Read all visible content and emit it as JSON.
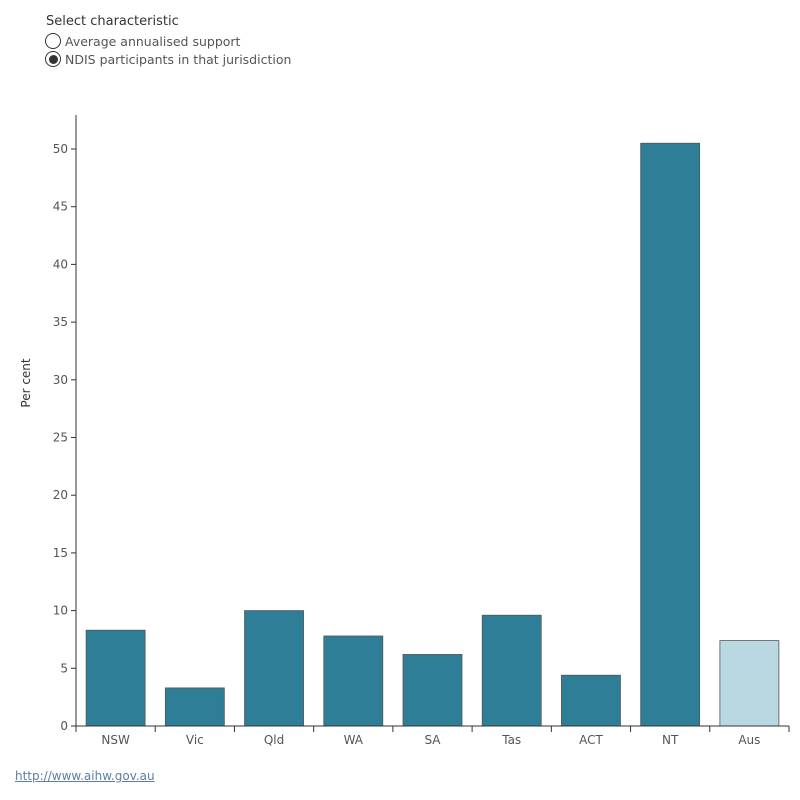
{
  "selector": {
    "title": "Select characteristic",
    "options": [
      {
        "label": "Average annualised support",
        "checked": false
      },
      {
        "label": "NDIS participants in that jurisdiction",
        "checked": true
      }
    ]
  },
  "chart_data": {
    "type": "bar",
    "categories": [
      "NSW",
      "Vic",
      "Qld",
      "WA",
      "SA",
      "Tas",
      "ACT",
      "NT",
      "Aus"
    ],
    "values": [
      8.3,
      3.3,
      10.0,
      7.8,
      6.2,
      9.6,
      4.4,
      50.5,
      7.4
    ],
    "highlight_category": "Aus",
    "title": "",
    "xlabel": "",
    "ylabel": "Per cent",
    "ylim": [
      0,
      53
    ],
    "yticks": [
      0,
      5,
      10,
      15,
      20,
      25,
      30,
      35,
      40,
      45,
      50
    ],
    "colors": {
      "bar": "#2e7e98",
      "highlight": "#b9d8e1",
      "bar_stroke": "#555555"
    }
  },
  "footer": {
    "link_text": "http://www.aihw.gov.au"
  }
}
